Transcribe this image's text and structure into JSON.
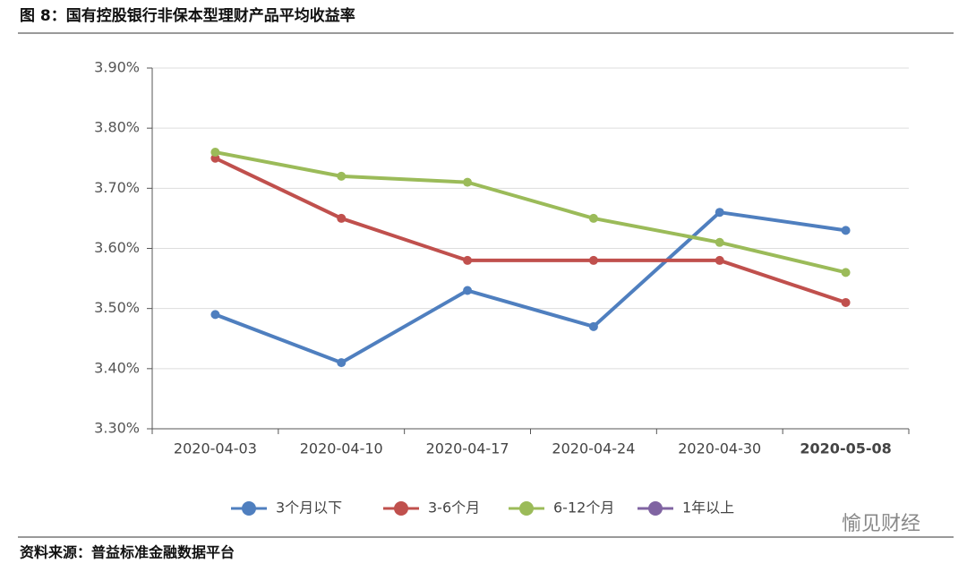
{
  "chart_data": {
    "type": "line",
    "title": "图 8：国有控股银行非保本型理财产品平均收益率",
    "source": "资料来源：普益标准金融数据平台",
    "watermark": "愉见财经",
    "categories": [
      "2020-04-03",
      "2020-04-10",
      "2020-04-17",
      "2020-04-24",
      "2020-04-30",
      "2020-05-08"
    ],
    "series": [
      {
        "name": "3个月以下",
        "color": "#4f7fbf",
        "values": [
          3.49,
          3.41,
          3.53,
          3.47,
          3.66,
          3.63
        ]
      },
      {
        "name": "3-6个月",
        "color": "#c0504d",
        "values": [
          3.75,
          3.65,
          3.58,
          3.58,
          3.58,
          3.51
        ]
      },
      {
        "name": "6-12个月",
        "color": "#9bbb59",
        "values": [
          3.76,
          3.72,
          3.71,
          3.65,
          3.61,
          3.56
        ]
      },
      {
        "name": "1年以上",
        "color": "#8064a2",
        "values": [
          null,
          null,
          null,
          null,
          null,
          null
        ]
      }
    ],
    "ylim": [
      3.3,
      3.9
    ],
    "yticks": [
      {
        "value": 3.3,
        "label": "3.30%"
      },
      {
        "value": 3.4,
        "label": "3.40%"
      },
      {
        "value": 3.5,
        "label": "3.50%"
      },
      {
        "value": 3.6,
        "label": "3.60%"
      },
      {
        "value": 3.7,
        "label": "3.70%"
      },
      {
        "value": 3.8,
        "label": "3.80%"
      },
      {
        "value": 3.9,
        "label": "3.90%"
      }
    ],
    "grid": true,
    "legend": "bottom"
  }
}
